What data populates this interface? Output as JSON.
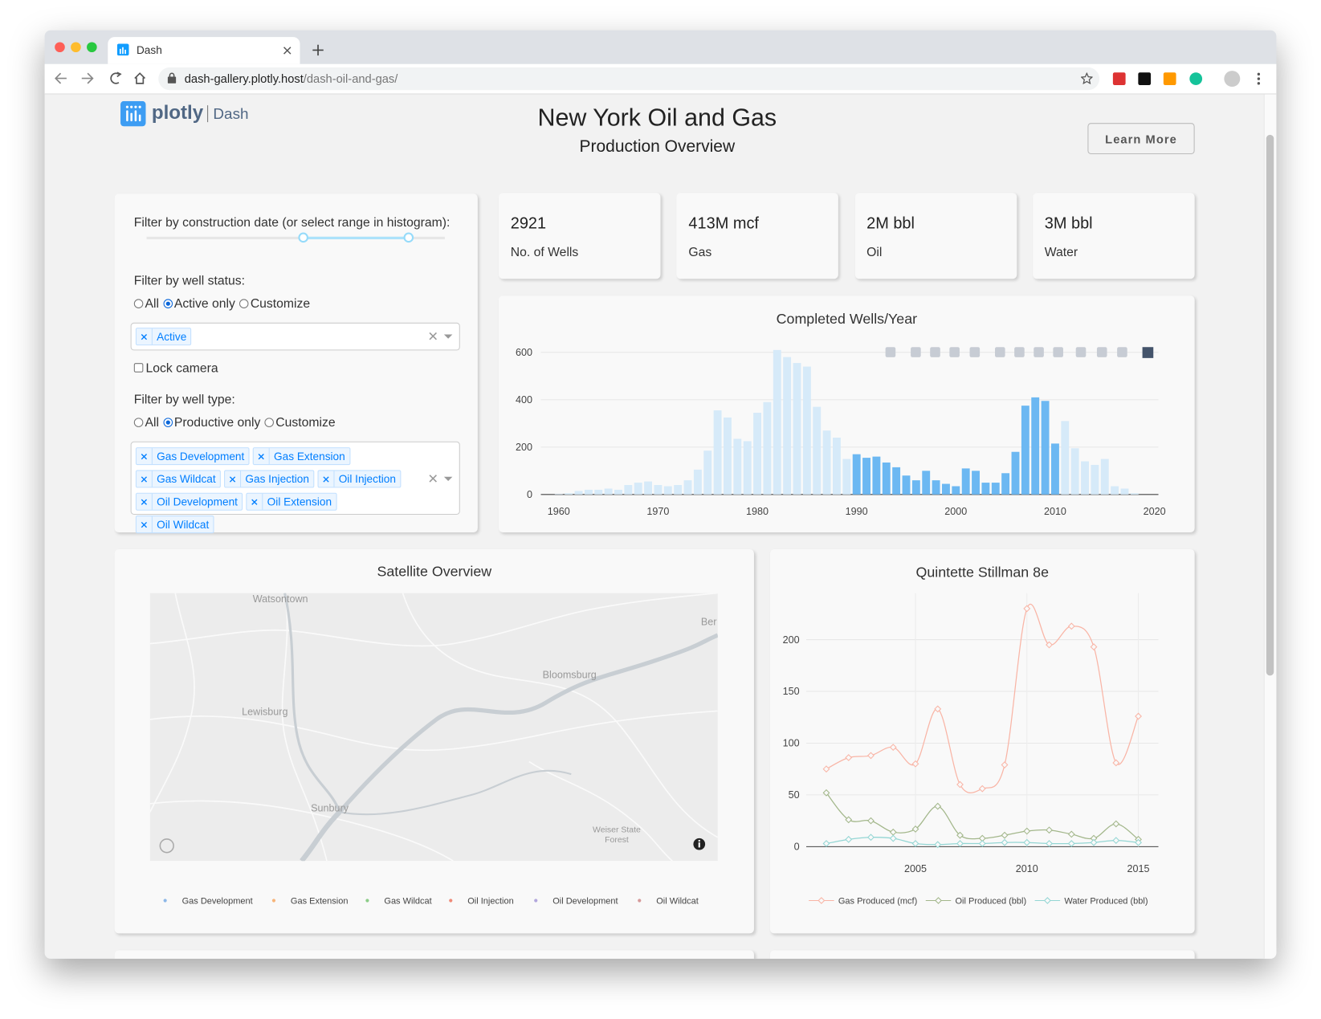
{
  "browser": {
    "tab_title": "Dash",
    "url_host": "dash-gallery.plotly.host",
    "url_path": "/dash-oil-and-gas/"
  },
  "header": {
    "logo": "plotly",
    "logo_sub": "Dash",
    "title": "New York Oil and Gas",
    "subtitle": "Production Overview",
    "button": "Learn More"
  },
  "filters": {
    "date_label": "Filter by construction date (or select range in histogram):",
    "status_label": "Filter by well status:",
    "status_options": [
      "All",
      "Active only",
      "Customize"
    ],
    "status_selected": 1,
    "status_tags": [
      "Active"
    ],
    "lock_camera": "Lock camera",
    "type_label": "Filter by well type:",
    "type_options": [
      "All",
      "Productive only",
      "Customize"
    ],
    "type_selected": 1,
    "type_tags": [
      "Gas Development",
      "Gas Extension",
      "Gas Wildcat",
      "Gas Injection",
      "Oil Injection",
      "Oil Development",
      "Oil Extension",
      "Oil Wildcat"
    ]
  },
  "stats": [
    {
      "value": "2921",
      "label": "No. of Wells"
    },
    {
      "value": "413M mcf",
      "label": "Gas"
    },
    {
      "value": "2M bbl",
      "label": "Oil"
    },
    {
      "value": "3M bbl",
      "label": "Water"
    }
  ],
  "map": {
    "title": "Satellite Overview",
    "places": [
      "Watsontown",
      "Ber",
      "Bloomsburg",
      "Lewisburg",
      "Sunbury",
      "Weiser State Forest"
    ],
    "legend": [
      {
        "name": "Gas Development",
        "color": "#8db8e8"
      },
      {
        "name": "Gas Extension",
        "color": "#f7b57a"
      },
      {
        "name": "Gas Wildcat",
        "color": "#8ccd88"
      },
      {
        "name": "Oil Injection",
        "color": "#ef8a78"
      },
      {
        "name": "Oil Development",
        "color": "#b2a7dd"
      },
      {
        "name": "Oil Wildcat",
        "color": "#d69a9a"
      }
    ]
  },
  "chart_data": [
    {
      "type": "bar",
      "title": "Completed Wells/Year",
      "x": [
        1960,
        1961,
        1962,
        1963,
        1964,
        1965,
        1966,
        1967,
        1968,
        1969,
        1970,
        1971,
        1972,
        1973,
        1974,
        1975,
        1976,
        1977,
        1978,
        1979,
        1980,
        1981,
        1982,
        1983,
        1984,
        1985,
        1986,
        1987,
        1988,
        1989,
        1990,
        1991,
        1992,
        1993,
        1994,
        1995,
        1996,
        1997,
        1998,
        1999,
        2000,
        2001,
        2002,
        2003,
        2004,
        2005,
        2006,
        2007,
        2008,
        2009,
        2010,
        2011,
        2012,
        2013,
        2014,
        2015,
        2016,
        2017,
        2018
      ],
      "values": [
        2,
        5,
        15,
        20,
        20,
        25,
        20,
        40,
        50,
        55,
        40,
        35,
        40,
        60,
        105,
        185,
        355,
        325,
        235,
        225,
        345,
        390,
        610,
        580,
        555,
        540,
        370,
        270,
        240,
        150,
        170,
        155,
        160,
        135,
        115,
        80,
        60,
        100,
        60,
        45,
        35,
        110,
        100,
        50,
        50,
        90,
        180,
        375,
        410,
        395,
        215,
        310,
        195,
        140,
        125,
        150,
        35,
        25,
        5
      ],
      "color": "#6cb8f2",
      "unselected_color": "#d6eaf9",
      "selected_range": [
        1990,
        2010
      ],
      "xlim": [
        1958.2,
        2020.4
      ],
      "xticks": [
        1960,
        1970,
        1980,
        1990,
        2000,
        2010,
        2020
      ],
      "ylim": [
        0,
        640
      ],
      "yticks": [
        0,
        200,
        400,
        600
      ],
      "grid": true
    },
    {
      "type": "line",
      "title": "Quintette Stillman 8e",
      "x": [
        2001,
        2002,
        2003,
        2004,
        2005,
        2006,
        2007,
        2008,
        2009,
        2010,
        2011,
        2012,
        2013,
        2014,
        2015
      ],
      "series": [
        {
          "name": "Gas Produced (mcf)",
          "color": "#f9b5a6",
          "values": [
            75,
            86,
            88,
            96,
            80,
            133,
            60,
            56,
            79,
            230,
            195,
            213,
            193,
            81,
            126
          ]
        },
        {
          "name": "Oil Produced (bbl)",
          "color": "#a3b78b",
          "values": [
            52,
            26,
            25,
            14,
            17,
            39,
            11,
            8,
            11,
            15,
            16,
            12,
            8,
            22,
            7
          ]
        },
        {
          "name": "Water Produced (bbl)",
          "color": "#94d6d4",
          "values": [
            3,
            7,
            9,
            8,
            3,
            2,
            3,
            3,
            4,
            4,
            3,
            3,
            4,
            6,
            4
          ]
        }
      ],
      "xlim": [
        2000.1,
        2015.9
      ],
      "xticks": [
        2005,
        2010,
        2015
      ],
      "ylim": [
        0,
        245
      ],
      "yticks": [
        0,
        50,
        100,
        150,
        200
      ],
      "grid": true,
      "legend": "bottom"
    }
  ]
}
